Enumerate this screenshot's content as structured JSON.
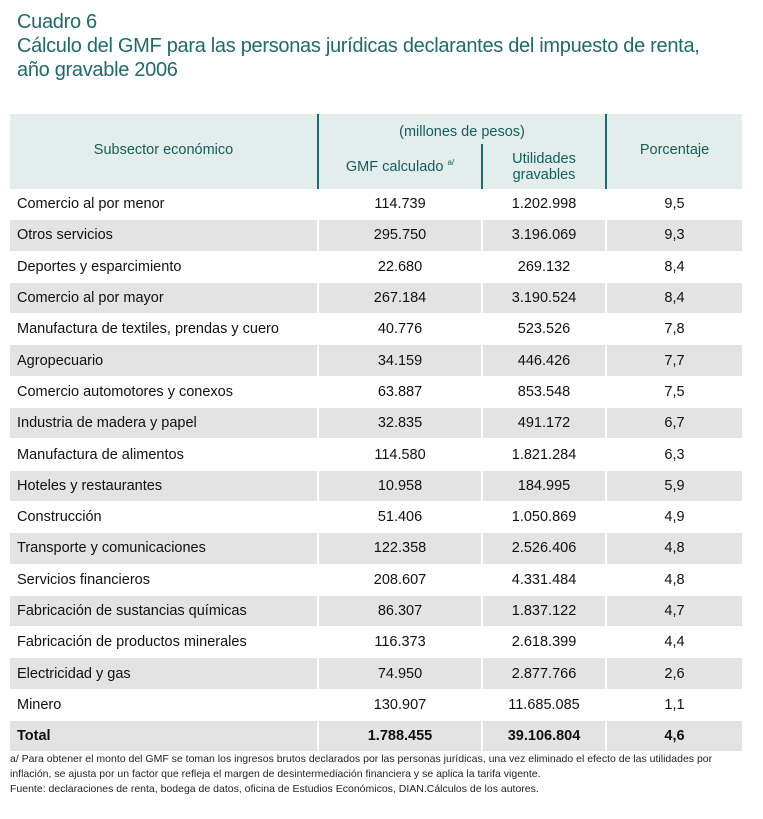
{
  "title": {
    "line1": "Cuadro 6",
    "line2": "Cálculo del GMF para las personas jurídicas declarantes del impuesto de renta,",
    "line3": "año gravable 2006"
  },
  "header": {
    "subsector": "Subsector económico",
    "units": "(millones de pesos)",
    "gmf": "GMF calculado",
    "gmf_note": "a/",
    "utilidades1": "Utilidades",
    "utilidades2": "gravables",
    "porcentaje": "Porcentaje"
  },
  "rows": [
    {
      "name": "Comercio al por menor",
      "gmf": "114.739",
      "util": "1.202.998",
      "pct": "9,5"
    },
    {
      "name": "Otros servicios",
      "gmf": "295.750",
      "util": "3.196.069",
      "pct": "9,3"
    },
    {
      "name": "Deportes y esparcimiento",
      "gmf": "22.680",
      "util": "269.132",
      "pct": "8,4"
    },
    {
      "name": "Comercio al por mayor",
      "gmf": "267.184",
      "util": "3.190.524",
      "pct": "8,4"
    },
    {
      "name": "Manufactura de textiles, prendas y cuero",
      "gmf": "40.776",
      "util": "523.526",
      "pct": "7,8"
    },
    {
      "name": "Agropecuario",
      "gmf": "34.159",
      "util": "446.426",
      "pct": "7,7"
    },
    {
      "name": "Comercio automotores y conexos",
      "gmf": "63.887",
      "util": "853.548",
      "pct": "7,5"
    },
    {
      "name": "Industria de madera y papel",
      "gmf": "32.835",
      "util": "491.172",
      "pct": "6,7"
    },
    {
      "name": "Manufactura de alimentos",
      "gmf": "114.580",
      "util": "1.821.284",
      "pct": "6,3"
    },
    {
      "name": "Hoteles y restaurantes",
      "gmf": "10.958",
      "util": "184.995",
      "pct": "5,9"
    },
    {
      "name": "Construcción",
      "gmf": "51.406",
      "util": "1.050.869",
      "pct": "4,9"
    },
    {
      "name": "Transporte y comunicaciones",
      "gmf": "122.358",
      "util": "2.526.406",
      "pct": "4,8"
    },
    {
      "name": "Servicios financieros",
      "gmf": "208.607",
      "util": "4.331.484",
      "pct": "4,8"
    },
    {
      "name": "Fabricación de sustancias químicas",
      "gmf": "86.307",
      "util": "1.837.122",
      "pct": "4,7"
    },
    {
      "name": "Fabricación de productos minerales",
      "gmf": "116.373",
      "util": "2.618.399",
      "pct": "4,4"
    },
    {
      "name": "Electricidad y gas",
      "gmf": "74.950",
      "util": "2.877.766",
      "pct": "2,6"
    },
    {
      "name": "Minero",
      "gmf": "130.907",
      "util": "11.685.085",
      "pct": "1,1"
    }
  ],
  "total": {
    "name": "Total",
    "gmf": "1.788.455",
    "util": "39.106.804",
    "pct": "4,6"
  },
  "footnotes": {
    "note_a": "a/ Para obtener el monto del GMF se toman los ingresos brutos declarados por las personas jurídicas, una vez eliminado el efecto de las utilidades por inflación, se ajusta por un factor que refleja el margen de desintermediación financiera y se aplica la tarifa vigente.",
    "source": "Fuente: declaraciones de renta, bodega de datos, oficina de Estudios Económicos, DIAN.Cálculos de los autores."
  }
}
